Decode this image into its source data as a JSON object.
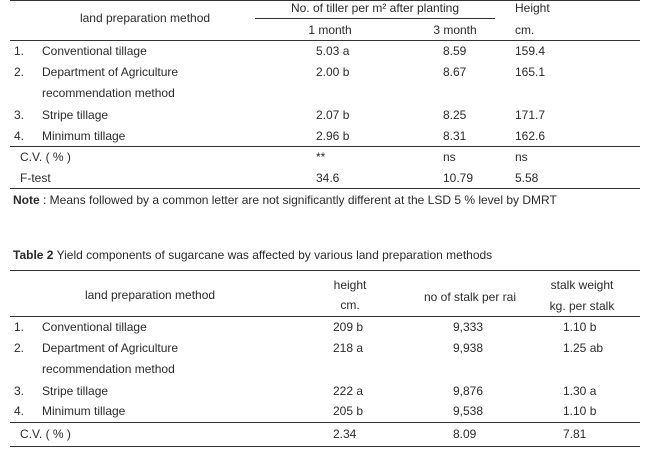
{
  "table1": {
    "header": {
      "method": "land preparation method",
      "tiller": "No. of tiller per m² after planting",
      "height": "Height",
      "month1": "1 month",
      "month3": "3 month",
      "height_unit": "cm."
    },
    "rows": [
      {
        "num": "1.",
        "method": "Conventional tillage",
        "cells": [
          "5.03 a",
          "8.59",
          "159.4"
        ]
      },
      {
        "num": "2.",
        "method": "Department of Agriculture",
        "method_line2": "recommendation method",
        "cells": [
          "2.00 b",
          "8.67",
          "165.1"
        ]
      },
      {
        "num": "3.",
        "method": "Stripe tillage",
        "cells": [
          "2.07 b",
          "8.25",
          "171.7"
        ]
      },
      {
        "num": "4.",
        "method": "Minimum tillage",
        "cells": [
          "2.96 b",
          "8.31",
          "162.6"
        ]
      }
    ],
    "stats": [
      {
        "label": "C.V. ( % )",
        "cells": [
          "**",
          "ns",
          "ns"
        ]
      },
      {
        "label": "F-test",
        "cells": [
          "34.6",
          "10.79",
          "5.58"
        ]
      }
    ],
    "note": {
      "label": "Note",
      "text": " : Means followed by a common letter are not significantly different at the LSD 5 % level by DMRT"
    }
  },
  "table2": {
    "caption": {
      "label": "Table 2",
      "text": "  Yield components of sugarcane was affected by various land preparation methods"
    },
    "header": {
      "method": "land preparation method",
      "height": "height",
      "height_unit": "cm.",
      "stalk": "no of stalk per rai",
      "weight": "stalk weight",
      "weight_unit": "kg. per stalk"
    },
    "rows": [
      {
        "num": "1.",
        "method": "Conventional tillage",
        "cells": [
          "209 b",
          "9,333",
          "1.10 b"
        ]
      },
      {
        "num": "2.",
        "method": "Department of Agriculture",
        "method_line2": "recommendation method",
        "cells": [
          "218 a",
          "9,938",
          "1.25 ab"
        ]
      },
      {
        "num": "3.",
        "method": "Stripe tillage",
        "cells": [
          "222 a",
          "9,876",
          "1.30 a"
        ]
      },
      {
        "num": "4.",
        "method": "Minimum tillage",
        "cells": [
          "205 b",
          "9,538",
          "1.10 b"
        ]
      }
    ],
    "stats": [
      {
        "label": "C.V. ( % )",
        "cells": [
          "2.34",
          "8.09",
          "7.81"
        ]
      }
    ]
  }
}
